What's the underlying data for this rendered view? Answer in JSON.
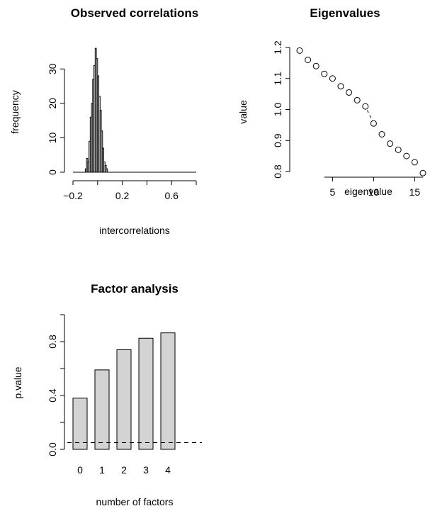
{
  "chart_data": [
    {
      "type": "bar",
      "subtype": "histogram",
      "title": "Observed correlations",
      "xlabel": "intercorrelations",
      "ylabel": "frequency",
      "xlim": [
        -0.2,
        0.8
      ],
      "ylim": [
        0,
        35
      ],
      "xticks": [
        -0.2,
        0.2,
        0.6
      ],
      "xtick_labels": [
        "−0.2",
        "0.2",
        "0.6"
      ],
      "yticks": [
        0,
        10,
        20,
        30
      ],
      "yticks_labels": [
        "0",
        "10",
        "20",
        "30"
      ],
      "bin_width": 0.01,
      "bins_start": [
        -0.1,
        -0.09,
        -0.08,
        -0.07,
        -0.06,
        -0.05,
        -0.04,
        -0.03,
        -0.02,
        -0.01,
        0.0,
        0.01,
        0.02,
        0.03,
        0.04,
        0.05,
        0.06,
        0.07
      ],
      "values": [
        1,
        4,
        3,
        9,
        16,
        20,
        27,
        31,
        36,
        33,
        28,
        22,
        18,
        12,
        7,
        3,
        2,
        1
      ],
      "baseline_to": 0.8
    },
    {
      "type": "scatter",
      "title": "Eigenvalues",
      "xlabel": "eigenvalue",
      "ylabel": "value",
      "xlim": [
        1,
        16
      ],
      "ylim": [
        0.8,
        1.2
      ],
      "xticks": [
        5,
        10,
        15
      ],
      "yticks": [
        0.8,
        0.9,
        1.0,
        1.1,
        1.2
      ],
      "ytick_labels": [
        "0.8",
        "0.9",
        "1.0",
        "1.1",
        "1.2"
      ],
      "x": [
        1,
        2,
        3,
        4,
        5,
        6,
        7,
        8,
        9,
        10,
        11,
        12,
        13,
        14,
        15,
        16
      ],
      "y": [
        1.19,
        1.16,
        1.14,
        1.115,
        1.1,
        1.075,
        1.055,
        1.03,
        1.01,
        0.955,
        0.92,
        0.89,
        0.87,
        0.85,
        0.83,
        0.795
      ],
      "dashed_segment": [
        9,
        10
      ]
    },
    {
      "type": "bar",
      "title": "Factor analysis",
      "xlabel": "number of factors",
      "ylabel": "p.value",
      "categories": [
        "0",
        "1",
        "2",
        "3",
        "4"
      ],
      "values": [
        0.38,
        0.59,
        0.74,
        0.825,
        0.865
      ],
      "ylim": [
        0,
        1.0
      ],
      "yticks": [
        0.0,
        0.4,
        0.8
      ],
      "ytick_labels": [
        "0.0",
        "0.4",
        "0.8"
      ],
      "reference_line": 0.05,
      "bar_color": "#d3d3d3"
    }
  ]
}
